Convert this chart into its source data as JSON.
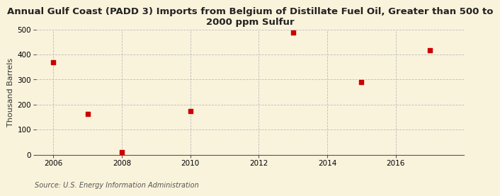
{
  "title": "Annual Gulf Coast (PADD 3) Imports from Belgium of Distillate Fuel Oil, Greater than 500 to\n2000 ppm Sulfur",
  "ylabel": "Thousand Barrels",
  "source": "Source: U.S. Energy Information Administration",
  "years": [
    2006,
    2007,
    2008,
    2010,
    2013,
    2015,
    2017
  ],
  "values": [
    370,
    162,
    10,
    175,
    488,
    291,
    418
  ],
  "xlim": [
    2005.5,
    2018
  ],
  "ylim": [
    0,
    500
  ],
  "yticks": [
    0,
    100,
    200,
    300,
    400,
    500
  ],
  "xticks": [
    2006,
    2008,
    2010,
    2012,
    2014,
    2016
  ],
  "bg_color": "#faf3dc",
  "plot_bg_color": "#faf3dc",
  "marker_color": "#cc0000",
  "marker_size": 4,
  "grid_color": "#bbbbbb",
  "title_fontsize": 9.5,
  "label_fontsize": 8,
  "tick_fontsize": 7.5,
  "source_fontsize": 7
}
